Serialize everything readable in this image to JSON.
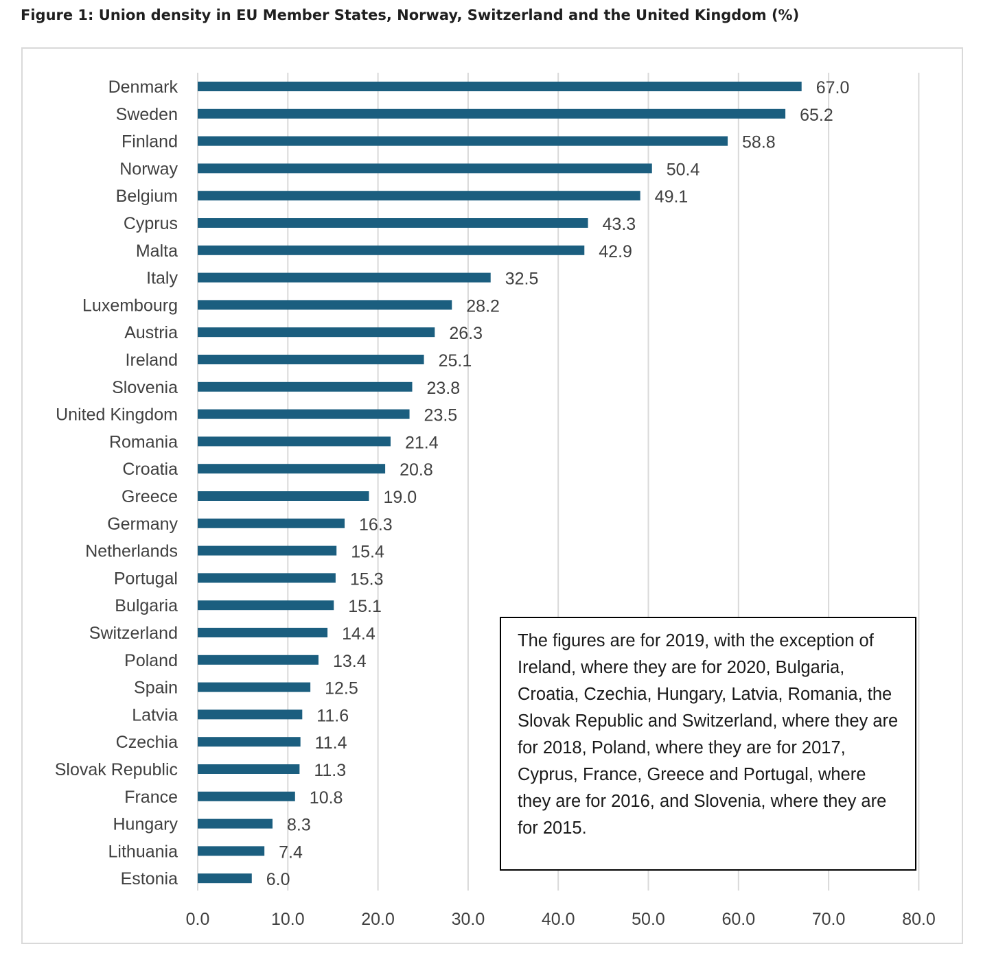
{
  "figure_title": "Figure 1: Union density in EU Member States, Norway, Switzerland and the United Kingdom (%)",
  "note_text": "The figures are for 2019, with the exception of Ireland, where they are for 2020, Bulgaria, Croatia, Czechia, Hungary, Latvia, Romania, the Slovak Republic and Switzerland, where they are for 2018, Poland, where they are for 2017, Cyprus, France, Greece and Portugal, where they are for 2016, and Slovenia, where they are for 2015.",
  "colors": {
    "bar": "#1b5e7f",
    "grid": "#d9d9d9",
    "label": "#404040"
  },
  "chart_data": {
    "type": "bar",
    "orientation": "horizontal",
    "title": "Figure 1: Union density in EU Member States, Norway, Switzerland and the United Kingdom (%)",
    "categories": [
      "Denmark",
      "Sweden",
      "Finland",
      "Norway",
      "Belgium",
      "Cyprus",
      "Malta",
      "Italy",
      "Luxembourg",
      "Austria",
      "Ireland",
      "Slovenia",
      "United Kingdom",
      "Romania",
      "Croatia",
      "Greece",
      "Germany",
      "Netherlands",
      "Portugal",
      "Bulgaria",
      "Switzerland",
      "Poland",
      "Spain",
      "Latvia",
      "Czechia",
      "Slovak Republic",
      "France",
      "Hungary",
      "Lithuania",
      "Estonia"
    ],
    "values": [
      67.0,
      65.2,
      58.8,
      50.4,
      49.1,
      43.3,
      42.9,
      32.5,
      28.2,
      26.3,
      25.1,
      23.8,
      23.5,
      21.4,
      20.8,
      19.0,
      16.3,
      15.4,
      15.3,
      15.1,
      14.4,
      13.4,
      12.5,
      11.6,
      11.4,
      11.3,
      10.8,
      8.3,
      7.4,
      6.0
    ],
    "data_labels": [
      "67.0",
      "65.2",
      "58.8",
      "50.4",
      "49.1",
      "43.3",
      "42.9",
      "32.5",
      "28.2",
      "26.3",
      "25.1",
      "23.8",
      "23.5",
      "21.4",
      "20.8",
      "19.0",
      "16.3",
      "15.4",
      "15.3",
      "15.1",
      "14.4",
      "13.4",
      "12.5",
      "11.6",
      "11.4",
      "11.3",
      "10.8",
      "8.3",
      "7.4",
      "6.0"
    ],
    "xticks": [
      "0.0",
      "10.0",
      "20.0",
      "30.0",
      "40.0",
      "50.0",
      "60.0",
      "70.0",
      "80.0"
    ],
    "xlim": [
      0,
      80
    ],
    "xlabel": "",
    "ylabel": "",
    "grid": "vertical",
    "legend": "none"
  }
}
